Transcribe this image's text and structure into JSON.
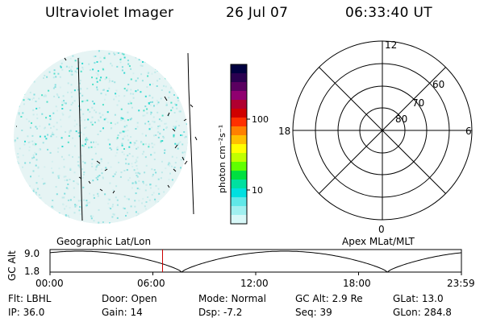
{
  "header": {
    "title": "Ultraviolet Imager",
    "date": "26 Jul 07",
    "time": "06:33:40 UT"
  },
  "colorbar": {
    "unit_label": "photon cm⁻²s⁻¹",
    "ticks": [
      "100",
      "10"
    ],
    "colors": [
      "#000040",
      "#2a0050",
      "#5a0060",
      "#900070",
      "#b00030",
      "#d00000",
      "#ff3000",
      "#ff8000",
      "#ffc000",
      "#ffff00",
      "#c0ff00",
      "#60ff00",
      "#00e040",
      "#00e0a0",
      "#00e0e0",
      "#60e8e8",
      "#a0f0f0",
      "#d8f8f8"
    ]
  },
  "polar": {
    "mlt_labels": [
      "12",
      "18",
      "6",
      "0"
    ],
    "lat_labels": [
      "60",
      "70",
      "80"
    ]
  },
  "altitude_plot": {
    "ylabel": "GC Alt",
    "yticks": [
      "9.0",
      "1.8"
    ],
    "left_caption": "Geographic Lat/Lon",
    "right_caption": "Apex MLat/MLT",
    "xticks": [
      "00:00",
      "06:00",
      "12:00",
      "18:00",
      "23:59"
    ],
    "current_time_marker_color": "#cc0000",
    "current_time_fraction": 0.2735
  },
  "status": {
    "row1": [
      "Flt: LBHL",
      "Door: Open",
      "Mode: Normal",
      "GC Alt: 2.9 Re",
      "GLat:  13.0"
    ],
    "row2": [
      "IP: 36.0",
      "Gain: 14",
      "Dsp:    -7.2",
      "Seq: 39",
      "GLon: 284.8"
    ]
  }
}
